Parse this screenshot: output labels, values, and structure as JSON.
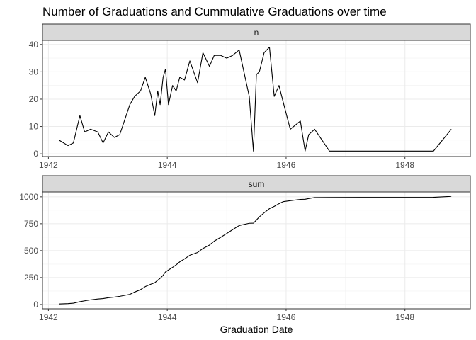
{
  "chart_data": {
    "type": "line",
    "title": "Number of Graduations and Cummulative Graduations over time",
    "xlabel": "Graduation Date",
    "x_ticks": [
      "1942",
      "1944",
      "1946",
      "1948"
    ],
    "x_tick_values": [
      1942,
      1944,
      1946,
      1948
    ],
    "xlim": [
      1941.9,
      1949.1
    ],
    "grid": true,
    "line_color": "#000000",
    "panels": [
      {
        "strip_label": "n",
        "ylim": [
          -1,
          41.5
        ],
        "y_ticks": [
          0,
          10,
          20,
          30,
          40
        ],
        "y_tick_labels": [
          "0",
          "10",
          "20",
          "30",
          "40"
        ],
        "series": [
          {
            "x": [
              1942.18,
              1942.33,
              1942.42,
              1942.53,
              1942.61,
              1942.71,
              1942.83,
              1942.92,
              1943.01,
              1943.11,
              1943.2,
              1943.37,
              1943.45,
              1943.55,
              1943.63,
              1943.72,
              1943.79,
              1943.84,
              1943.88,
              1943.93,
              1943.97,
              1944.02,
              1944.09,
              1944.15,
              1944.21,
              1944.29,
              1944.38,
              1944.51,
              1944.6,
              1944.71,
              1944.79,
              1944.9,
              1945.0,
              1945.1,
              1945.21,
              1945.38,
              1945.45,
              1945.5,
              1945.55,
              1945.63,
              1945.72,
              1945.8,
              1945.88,
              1945.95,
              1946.07,
              1946.24,
              1946.32,
              1946.38,
              1946.48,
              1946.73,
              1948.48,
              1948.78
            ],
            "y": [
              5,
              3,
              4,
              14,
              8,
              9,
              8,
              4,
              8,
              6,
              7,
              18,
              21,
              23,
              28,
              22,
              14,
              23,
              18,
              28,
              31,
              18,
              25,
              23,
              28,
              27,
              34,
              26,
              37,
              32,
              36,
              36,
              35,
              36,
              38,
              21,
              1,
              29,
              30,
              37,
              39,
              21,
              25,
              19,
              9,
              12,
              1,
              7,
              9,
              1,
              1,
              9
            ]
          }
        ]
      },
      {
        "strip_label": "sum",
        "ylim": [
          -40,
          1045
        ],
        "y_ticks": [
          0,
          250,
          500,
          750,
          1000
        ],
        "y_tick_labels": [
          "0",
          "250",
          "500",
          "750",
          "1000"
        ],
        "series": [
          {
            "x": [
              1942.18,
              1942.33,
              1942.42,
              1942.53,
              1942.61,
              1942.71,
              1942.83,
              1942.92,
              1943.01,
              1943.11,
              1943.2,
              1943.37,
              1943.45,
              1943.55,
              1943.63,
              1943.72,
              1943.79,
              1943.84,
              1943.88,
              1943.93,
              1943.97,
              1944.02,
              1944.09,
              1944.15,
              1944.21,
              1944.29,
              1944.38,
              1944.51,
              1944.6,
              1944.71,
              1944.79,
              1944.9,
              1945.0,
              1945.1,
              1945.21,
              1945.38,
              1945.45,
              1945.5,
              1945.55,
              1945.63,
              1945.72,
              1945.8,
              1945.88,
              1945.95,
              1946.07,
              1946.24,
              1946.32,
              1946.38,
              1946.48,
              1946.73,
              1948.48,
              1948.78
            ],
            "y": [
              5,
              8,
              12,
              26,
              34,
              43,
              51,
              55,
              63,
              69,
              76,
              94,
              115,
              138,
              166,
              188,
              202,
              225,
              243,
              271,
              302,
              320,
              345,
              368,
              396,
              423,
              457,
              483,
              520,
              552,
              588,
              624,
              659,
              695,
              733,
              754,
              755,
              784,
              814,
              851,
              890,
              911,
              936,
              955,
              964,
              976,
              977,
              984,
              993,
              994,
              995,
              1004
            ]
          }
        ]
      }
    ]
  }
}
